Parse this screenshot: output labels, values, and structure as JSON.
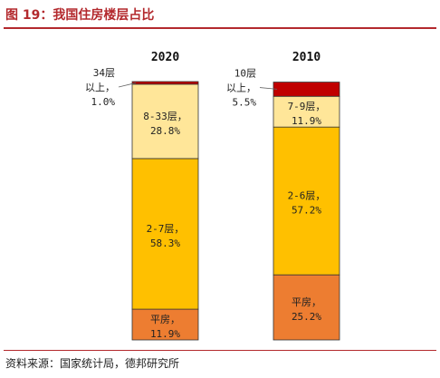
{
  "title": "图 19：我国住房楼层占比",
  "source": "资料来源：国家统计局，德邦研究所",
  "colors": {
    "title_red": "#b3292d",
    "segment_top": "#c00000",
    "segment_upper": "#ffe699",
    "segment_middle": "#ffc000",
    "segment_bottom": "#ed7d31",
    "bar_border": "#ffffff",
    "outline": "#333333"
  },
  "chart_data": {
    "type": "bar",
    "stacked": true,
    "percent_stacked": true,
    "ylim": [
      0,
      100
    ],
    "grid": false,
    "categories": [
      "2020",
      "2010"
    ],
    "bars": [
      {
        "category": "2020",
        "segments": [
          {
            "label": "平房，",
            "value_text": "11.9%",
            "value": 11.9,
            "color": "#ed7d31"
          },
          {
            "label": "2-7层，",
            "value_text": "58.3%",
            "value": 58.3,
            "color": "#ffc000"
          },
          {
            "label": "8-33层，",
            "value_text": "28.8%",
            "value": 28.8,
            "color": "#ffe699"
          },
          {
            "label": "34层以上，",
            "label_lines": [
              "34层",
              "以上，"
            ],
            "value_text": "1.0%",
            "value": 1.0,
            "color": "#c00000",
            "outside_label": true
          }
        ]
      },
      {
        "category": "2010",
        "segments": [
          {
            "label": "平房，",
            "value_text": "25.2%",
            "value": 25.2,
            "color": "#ed7d31"
          },
          {
            "label": "2-6层，",
            "value_text": "57.2%",
            "value": 57.2,
            "color": "#ffc000"
          },
          {
            "label": "7-9层，",
            "value_text": "11.9%",
            "value": 11.9,
            "color": "#ffe699"
          },
          {
            "label": "10层以上，",
            "label_lines": [
              "10层",
              "以上，"
            ],
            "value_text": "5.5%",
            "value": 5.5,
            "color": "#c00000",
            "outside_label": true
          }
        ]
      }
    ]
  }
}
